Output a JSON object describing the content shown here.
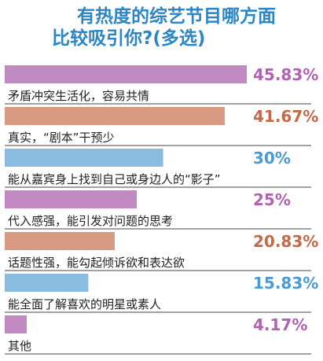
{
  "chart_data": {
    "type": "bar",
    "orientation": "horizontal",
    "title_lines": [
      "有热度的综艺节目哪方面",
      "比较吸引你?(多选)"
    ],
    "categories": [
      "矛盾冲突生活化，容易共情",
      "真实，“剧本”干预少",
      "能从嘉宾身上找到自己或身边人的“影子”",
      "代入感强，能引发对问题的思考",
      "话题性强，能勾起倾诉欲和表达欲",
      "能全面了解喜欢的明星或素人",
      "其他"
    ],
    "values": [
      45.83,
      41.67,
      30,
      25,
      20.83,
      15.83,
      4.17
    ],
    "value_labels": [
      "45.83%",
      "41.67%",
      "30%",
      "25%",
      "20.83%",
      "15.83%",
      "4.17%"
    ],
    "unit": "%",
    "xlim": [
      0,
      45.83
    ],
    "grid": false,
    "legend": "none"
  },
  "colors": {
    "title": "#2b86c5",
    "category_text": "#222222",
    "underline": "#444444",
    "bars": [
      "#c28ac2",
      "#d99a83",
      "#8cbbe0",
      "#c28ac2",
      "#d99a83",
      "#8cbbe0",
      "#c28ac2"
    ],
    "value_text": [
      "#b163b1",
      "#c46a49",
      "#4a9ad6",
      "#b163b1",
      "#c46a49",
      "#4a9ad6",
      "#b163b1"
    ]
  }
}
